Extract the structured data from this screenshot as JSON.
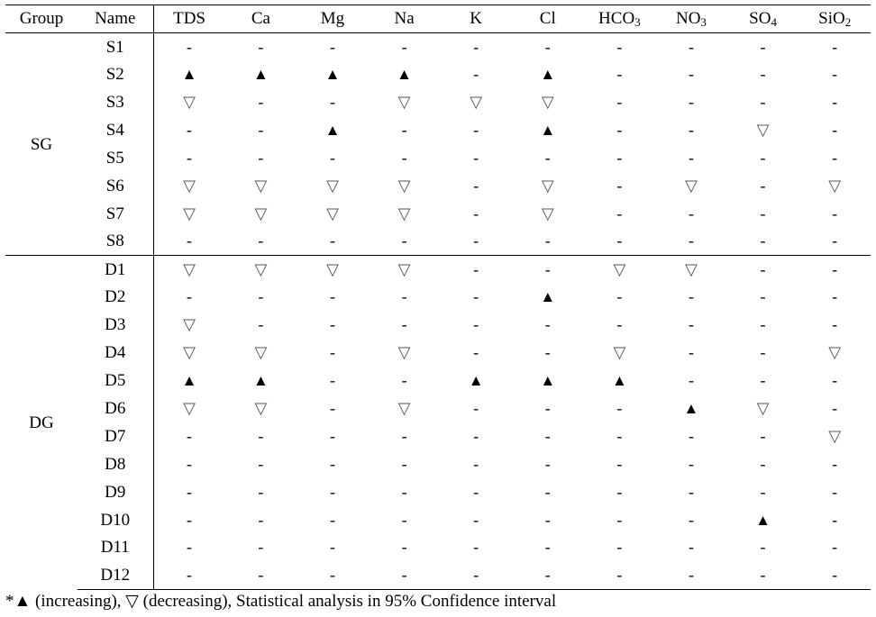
{
  "header": {
    "group": "Group",
    "name": "Name",
    "columns": [
      {
        "base": "TDS",
        "sub": ""
      },
      {
        "base": "Ca",
        "sub": ""
      },
      {
        "base": "Mg",
        "sub": ""
      },
      {
        "base": "Na",
        "sub": ""
      },
      {
        "base": "K",
        "sub": ""
      },
      {
        "base": "Cl",
        "sub": ""
      },
      {
        "base": "HCO",
        "sub": "3"
      },
      {
        "base": "NO",
        "sub": "3"
      },
      {
        "base": "SO",
        "sub": "4"
      },
      {
        "base": "SiO",
        "sub": "2"
      }
    ]
  },
  "symbols": {
    "up": "▲",
    "down": "▽",
    "none": "-"
  },
  "groups": [
    {
      "label": "SG",
      "rows": [
        {
          "name": "S1",
          "values": [
            "-",
            "-",
            "-",
            "-",
            "-",
            "-",
            "-",
            "-",
            "-",
            "-"
          ]
        },
        {
          "name": "S2",
          "values": [
            "up",
            "up",
            "up",
            "up",
            "-",
            "up",
            "-",
            "-",
            "-",
            "-"
          ]
        },
        {
          "name": "S3",
          "values": [
            "down",
            "-",
            "-",
            "down",
            "down",
            "down",
            "-",
            "-",
            "-",
            "-"
          ]
        },
        {
          "name": "S4",
          "values": [
            "-",
            "-",
            "up",
            "-",
            "-",
            "up",
            "-",
            "-",
            "down",
            "-"
          ]
        },
        {
          "name": "S5",
          "values": [
            "-",
            "-",
            "-",
            "-",
            "-",
            "-",
            "-",
            "-",
            "-",
            "-"
          ]
        },
        {
          "name": "S6",
          "values": [
            "down",
            "down",
            "down",
            "down",
            "-",
            "down",
            "-",
            "down",
            "-",
            "down"
          ]
        },
        {
          "name": "S7",
          "values": [
            "down",
            "down",
            "down",
            "down",
            "-",
            "down",
            "-",
            "-",
            "-",
            "-"
          ]
        },
        {
          "name": "S8",
          "values": [
            "-",
            "-",
            "-",
            "-",
            "-",
            "-",
            "-",
            "-",
            "-",
            "-"
          ]
        }
      ]
    },
    {
      "label": "DG",
      "rows": [
        {
          "name": "D1",
          "values": [
            "down",
            "down",
            "down",
            "down",
            "-",
            "-",
            "down",
            "down",
            "-",
            "-"
          ]
        },
        {
          "name": "D2",
          "values": [
            "-",
            "-",
            "-",
            "-",
            "-",
            "up",
            "-",
            "-",
            "-",
            "-"
          ]
        },
        {
          "name": "D3",
          "values": [
            "down",
            "-",
            "-",
            "-",
            "-",
            "-",
            "-",
            "-",
            "-",
            "-"
          ]
        },
        {
          "name": "D4",
          "values": [
            "down",
            "down",
            "-",
            "down",
            "-",
            "-",
            "down",
            "-",
            "-",
            "down"
          ]
        },
        {
          "name": "D5",
          "values": [
            "up",
            "up",
            "-",
            "-",
            "up",
            "up",
            "up",
            "-",
            "-",
            "-"
          ]
        },
        {
          "name": "D6",
          "values": [
            "down",
            "down",
            "-",
            "down",
            "-",
            "-",
            "-",
            "up",
            "down",
            "-"
          ]
        },
        {
          "name": "D7",
          "values": [
            "-",
            "-",
            "-",
            "-",
            "-",
            "-",
            "-",
            "-",
            "-",
            "down"
          ]
        },
        {
          "name": "D8",
          "values": [
            "-",
            "-",
            "-",
            "-",
            "-",
            "-",
            "-",
            "-",
            "-",
            "-"
          ]
        },
        {
          "name": "D9",
          "values": [
            "-",
            "-",
            "-",
            "-",
            "-",
            "-",
            "-",
            "-",
            "-",
            "-"
          ]
        },
        {
          "name": "D10",
          "values": [
            "-",
            "-",
            "-",
            "-",
            "-",
            "-",
            "-",
            "-",
            "up",
            "-"
          ]
        },
        {
          "name": "D11",
          "values": [
            "-",
            "-",
            "-",
            "-",
            "-",
            "-",
            "-",
            "-",
            "-",
            "-"
          ]
        },
        {
          "name": "D12",
          "values": [
            "-",
            "-",
            "-",
            "-",
            "-",
            "-",
            "-",
            "-",
            "-",
            "-"
          ]
        }
      ]
    }
  ],
  "footnote": "*▲ (increasing), ▽ (decreasing), Statistical analysis in 95% Confidence interval"
}
